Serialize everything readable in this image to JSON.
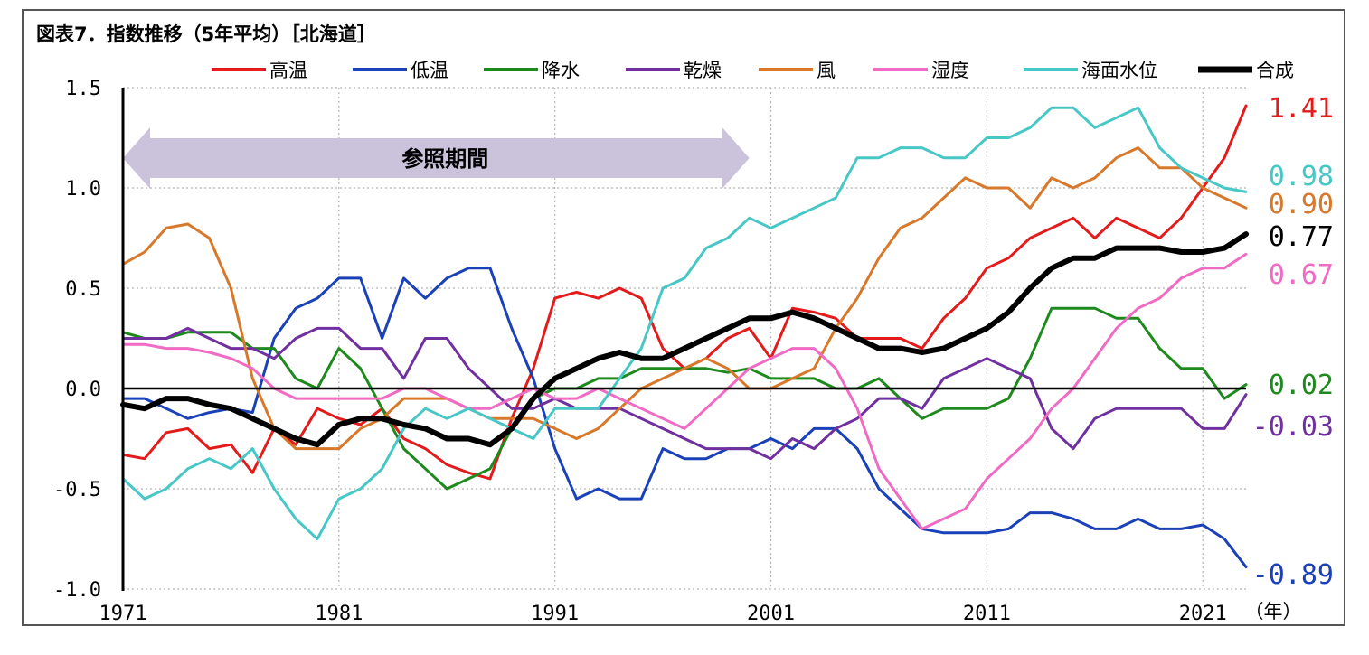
{
  "title": "図表7．指数推移（5年平均）［北海道］",
  "chart_data": {
    "type": "line",
    "title": "図表7．指数推移（5年平均）［北海道］",
    "xlabel": "（年）",
    "ylabel": "",
    "xlim": [
      1971,
      2023
    ],
    "ylim": [
      -1.0,
      1.5
    ],
    "x_ticks": [
      "1971",
      "1981",
      "1991",
      "2001",
      "2011",
      "2021"
    ],
    "y_ticks": [
      "1.5",
      "1.0",
      "0.5",
      "0.0",
      "-0.5",
      "-1.0"
    ],
    "grid": true,
    "legend_position": "top",
    "reference_band": {
      "label": "参照期間",
      "from": 1971,
      "to": 2000,
      "color": "#cbc3dc"
    },
    "series": [
      {
        "name": "高温",
        "color": "#e31b1b",
        "width": 3,
        "end_label": "1.41",
        "x": [
          1971,
          1972,
          1973,
          1974,
          1975,
          1976,
          1977,
          1978,
          1979,
          1980,
          1981,
          1982,
          1983,
          1984,
          1985,
          1986,
          1987,
          1988,
          1989,
          1990,
          1991,
          1992,
          1993,
          1994,
          1995,
          1996,
          1997,
          1998,
          1999,
          2000,
          2001,
          2002,
          2003,
          2004,
          2005,
          2006,
          2007,
          2008,
          2009,
          2010,
          2011,
          2012,
          2013,
          2014,
          2015,
          2016,
          2017,
          2018,
          2019,
          2020,
          2021,
          2022,
          2023
        ],
        "values": [
          -0.33,
          -0.35,
          -0.22,
          -0.2,
          -0.3,
          -0.28,
          -0.42,
          -0.2,
          -0.28,
          -0.1,
          -0.15,
          -0.18,
          -0.1,
          -0.25,
          -0.3,
          -0.38,
          -0.42,
          -0.45,
          -0.15,
          0.1,
          0.45,
          0.48,
          0.45,
          0.5,
          0.45,
          0.2,
          0.1,
          0.15,
          0.25,
          0.3,
          0.15,
          0.4,
          0.38,
          0.35,
          0.25,
          0.25,
          0.25,
          0.2,
          0.35,
          0.45,
          0.6,
          0.65,
          0.75,
          0.8,
          0.85,
          0.75,
          0.85,
          0.8,
          0.75,
          0.85,
          1.0,
          1.15,
          1.41
        ]
      },
      {
        "name": "低温",
        "color": "#1a41b8",
        "width": 3,
        "end_label": "-0.89",
        "x": [
          1971,
          1972,
          1973,
          1974,
          1975,
          1976,
          1977,
          1978,
          1979,
          1980,
          1981,
          1982,
          1983,
          1984,
          1985,
          1986,
          1987,
          1988,
          1989,
          1990,
          1991,
          1992,
          1993,
          1994,
          1995,
          1996,
          1997,
          1998,
          1999,
          2000,
          2001,
          2002,
          2003,
          2004,
          2005,
          2006,
          2007,
          2008,
          2009,
          2010,
          2011,
          2012,
          2013,
          2014,
          2015,
          2016,
          2017,
          2018,
          2019,
          2020,
          2021,
          2022,
          2023
        ],
        "values": [
          -0.05,
          -0.05,
          -0.1,
          -0.15,
          -0.12,
          -0.1,
          -0.12,
          0.25,
          0.4,
          0.45,
          0.55,
          0.55,
          0.25,
          0.55,
          0.45,
          0.55,
          0.6,
          0.6,
          0.3,
          0.05,
          -0.3,
          -0.55,
          -0.5,
          -0.55,
          -0.55,
          -0.3,
          -0.35,
          -0.35,
          -0.3,
          -0.3,
          -0.25,
          -0.3,
          -0.2,
          -0.2,
          -0.3,
          -0.5,
          -0.6,
          -0.7,
          -0.72,
          -0.72,
          -0.72,
          -0.7,
          -0.62,
          -0.62,
          -0.65,
          -0.7,
          -0.7,
          -0.65,
          -0.7,
          -0.7,
          -0.68,
          -0.75,
          -0.89
        ]
      },
      {
        "name": "降水",
        "color": "#1e8a1e",
        "width": 3,
        "end_label": "0.02",
        "x": [
          1971,
          1972,
          1973,
          1974,
          1975,
          1976,
          1977,
          1978,
          1979,
          1980,
          1981,
          1982,
          1983,
          1984,
          1985,
          1986,
          1987,
          1988,
          1989,
          1990,
          1991,
          1992,
          1993,
          1994,
          1995,
          1996,
          1997,
          1998,
          1999,
          2000,
          2001,
          2002,
          2003,
          2004,
          2005,
          2006,
          2007,
          2008,
          2009,
          2010,
          2011,
          2012,
          2013,
          2014,
          2015,
          2016,
          2017,
          2018,
          2019,
          2020,
          2021,
          2022,
          2023
        ],
        "values": [
          0.28,
          0.25,
          0.25,
          0.28,
          0.28,
          0.28,
          0.2,
          0.2,
          0.05,
          0.0,
          0.2,
          0.1,
          -0.1,
          -0.3,
          -0.4,
          -0.5,
          -0.45,
          -0.4,
          -0.2,
          -0.05,
          0.0,
          0.0,
          0.05,
          0.05,
          0.1,
          0.1,
          0.1,
          0.1,
          0.08,
          0.1,
          0.05,
          0.05,
          0.05,
          0.0,
          0.0,
          0.05,
          -0.05,
          -0.15,
          -0.1,
          -0.1,
          -0.1,
          -0.05,
          0.15,
          0.4,
          0.4,
          0.4,
          0.35,
          0.35,
          0.2,
          0.1,
          0.1,
          -0.05,
          0.02
        ]
      },
      {
        "name": "乾燥",
        "color": "#7030a0",
        "width": 3,
        "end_label": "-0.03",
        "x": [
          1971,
          1972,
          1973,
          1974,
          1975,
          1976,
          1977,
          1978,
          1979,
          1980,
          1981,
          1982,
          1983,
          1984,
          1985,
          1986,
          1987,
          1988,
          1989,
          1990,
          1991,
          1992,
          1993,
          1994,
          1995,
          1996,
          1997,
          1998,
          1999,
          2000,
          2001,
          2002,
          2003,
          2004,
          2005,
          2006,
          2007,
          2008,
          2009,
          2010,
          2011,
          2012,
          2013,
          2014,
          2015,
          2016,
          2017,
          2018,
          2019,
          2020,
          2021,
          2022,
          2023
        ],
        "values": [
          0.25,
          0.25,
          0.25,
          0.3,
          0.25,
          0.2,
          0.2,
          0.15,
          0.25,
          0.3,
          0.3,
          0.2,
          0.2,
          0.05,
          0.25,
          0.25,
          0.1,
          0.0,
          -0.1,
          -0.1,
          -0.05,
          -0.1,
          -0.1,
          -0.1,
          -0.15,
          -0.2,
          -0.25,
          -0.3,
          -0.3,
          -0.3,
          -0.35,
          -0.25,
          -0.3,
          -0.2,
          -0.15,
          -0.05,
          -0.05,
          -0.1,
          0.05,
          0.1,
          0.15,
          0.1,
          0.05,
          -0.2,
          -0.3,
          -0.15,
          -0.1,
          -0.1,
          -0.1,
          -0.1,
          -0.2,
          -0.2,
          -0.03
        ]
      },
      {
        "name": "風",
        "color": "#d8782b",
        "width": 3,
        "end_label": "0.90",
        "x": [
          1971,
          1972,
          1973,
          1974,
          1975,
          1976,
          1977,
          1978,
          1979,
          1980,
          1981,
          1982,
          1983,
          1984,
          1985,
          1986,
          1987,
          1988,
          1989,
          1990,
          1991,
          1992,
          1993,
          1994,
          1995,
          1996,
          1997,
          1998,
          1999,
          2000,
          2001,
          2002,
          2003,
          2004,
          2005,
          2006,
          2007,
          2008,
          2009,
          2010,
          2011,
          2012,
          2013,
          2014,
          2015,
          2016,
          2017,
          2018,
          2019,
          2020,
          2021,
          2022,
          2023
        ],
        "values": [
          0.62,
          0.68,
          0.8,
          0.82,
          0.75,
          0.5,
          0.05,
          -0.2,
          -0.3,
          -0.3,
          -0.3,
          -0.2,
          -0.15,
          -0.05,
          -0.05,
          -0.05,
          -0.1,
          -0.15,
          -0.15,
          -0.15,
          -0.2,
          -0.25,
          -0.2,
          -0.1,
          0.0,
          0.05,
          0.1,
          0.15,
          0.1,
          0.0,
          0.0,
          0.05,
          0.1,
          0.3,
          0.45,
          0.65,
          0.8,
          0.85,
          0.95,
          1.05,
          1.0,
          1.0,
          0.9,
          1.05,
          1.0,
          1.05,
          1.15,
          1.2,
          1.1,
          1.1,
          1.0,
          0.95,
          0.9
        ]
      },
      {
        "name": "湿度",
        "color": "#ef6bc4",
        "width": 3,
        "end_label": "0.67",
        "x": [
          1971,
          1972,
          1973,
          1974,
          1975,
          1976,
          1977,
          1978,
          1979,
          1980,
          1981,
          1982,
          1983,
          1984,
          1985,
          1986,
          1987,
          1988,
          1989,
          1990,
          1991,
          1992,
          1993,
          1994,
          1995,
          1996,
          1997,
          1998,
          1999,
          2000,
          2001,
          2002,
          2003,
          2004,
          2005,
          2006,
          2007,
          2008,
          2009,
          2010,
          2011,
          2012,
          2013,
          2014,
          2015,
          2016,
          2017,
          2018,
          2019,
          2020,
          2021,
          2022,
          2023
        ],
        "values": [
          0.22,
          0.22,
          0.2,
          0.2,
          0.18,
          0.15,
          0.1,
          0.0,
          -0.05,
          -0.05,
          -0.05,
          -0.05,
          -0.05,
          0.0,
          0.0,
          -0.05,
          -0.1,
          -0.1,
          -0.05,
          0.0,
          -0.05,
          -0.05,
          0.0,
          -0.05,
          -0.1,
          -0.15,
          -0.2,
          -0.1,
          0.0,
          0.1,
          0.15,
          0.2,
          0.2,
          0.1,
          -0.1,
          -0.4,
          -0.55,
          -0.7,
          -0.65,
          -0.6,
          -0.45,
          -0.35,
          -0.25,
          -0.1,
          0.0,
          0.15,
          0.3,
          0.4,
          0.45,
          0.55,
          0.6,
          0.6,
          0.67
        ]
      },
      {
        "name": "海面水位",
        "color": "#48c7c7",
        "width": 3,
        "end_label": "0.98",
        "x": [
          1971,
          1972,
          1973,
          1974,
          1975,
          1976,
          1977,
          1978,
          1979,
          1980,
          1981,
          1982,
          1983,
          1984,
          1985,
          1986,
          1987,
          1988,
          1989,
          1990,
          1991,
          1992,
          1993,
          1994,
          1995,
          1996,
          1997,
          1998,
          1999,
          2000,
          2001,
          2002,
          2003,
          2004,
          2005,
          2006,
          2007,
          2008,
          2009,
          2010,
          2011,
          2012,
          2013,
          2014,
          2015,
          2016,
          2017,
          2018,
          2019,
          2020,
          2021,
          2022,
          2023
        ],
        "values": [
          -0.45,
          -0.55,
          -0.5,
          -0.4,
          -0.35,
          -0.4,
          -0.3,
          -0.5,
          -0.65,
          -0.75,
          -0.55,
          -0.5,
          -0.4,
          -0.2,
          -0.1,
          -0.15,
          -0.1,
          -0.15,
          -0.2,
          -0.25,
          -0.1,
          -0.1,
          -0.1,
          0.05,
          0.2,
          0.5,
          0.55,
          0.7,
          0.75,
          0.85,
          0.8,
          0.85,
          0.9,
          0.95,
          1.15,
          1.15,
          1.2,
          1.2,
          1.15,
          1.15,
          1.25,
          1.25,
          1.3,
          1.4,
          1.4,
          1.3,
          1.35,
          1.4,
          1.2,
          1.1,
          1.05,
          1.0,
          0.98
        ]
      },
      {
        "name": "合成",
        "color": "#000000",
        "width": 6,
        "end_label": "0.77",
        "x": [
          1971,
          1972,
          1973,
          1974,
          1975,
          1976,
          1977,
          1978,
          1979,
          1980,
          1981,
          1982,
          1983,
          1984,
          1985,
          1986,
          1987,
          1988,
          1989,
          1990,
          1991,
          1992,
          1993,
          1994,
          1995,
          1996,
          1997,
          1998,
          1999,
          2000,
          2001,
          2002,
          2003,
          2004,
          2005,
          2006,
          2007,
          2008,
          2009,
          2010,
          2011,
          2012,
          2013,
          2014,
          2015,
          2016,
          2017,
          2018,
          2019,
          2020,
          2021,
          2022,
          2023
        ],
        "values": [
          -0.08,
          -0.1,
          -0.05,
          -0.05,
          -0.08,
          -0.1,
          -0.15,
          -0.2,
          -0.25,
          -0.28,
          -0.18,
          -0.15,
          -0.15,
          -0.18,
          -0.2,
          -0.25,
          -0.25,
          -0.28,
          -0.2,
          -0.05,
          0.05,
          0.1,
          0.15,
          0.18,
          0.15,
          0.15,
          0.2,
          0.25,
          0.3,
          0.35,
          0.35,
          0.38,
          0.35,
          0.3,
          0.25,
          0.2,
          0.2,
          0.18,
          0.2,
          0.25,
          0.3,
          0.38,
          0.5,
          0.6,
          0.65,
          0.65,
          0.7,
          0.7,
          0.7,
          0.68,
          0.68,
          0.7,
          0.77
        ]
      }
    ]
  }
}
